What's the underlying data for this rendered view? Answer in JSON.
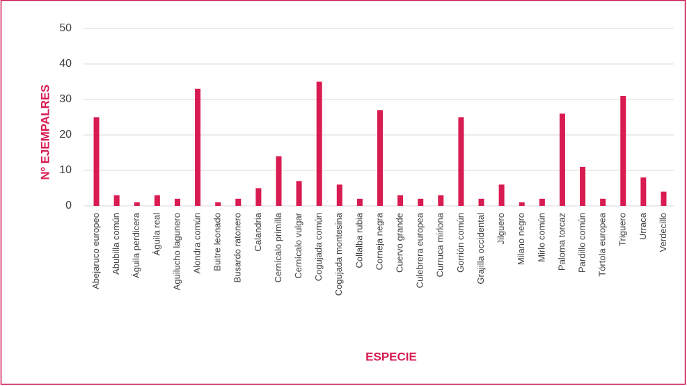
{
  "chart_data": {
    "type": "bar",
    "x_label": "ESPECIE",
    "y_label": "Nº EJEMPALRES",
    "categories": [
      "Abejaruco europeo",
      "Abubilla común",
      "Águila perdicera",
      "Águila real",
      "Aguilucho lagunero",
      "Alondra común",
      "Buitre leonado",
      "Busardo ratonero",
      "Calandria",
      "Cernícalo primilla",
      "Cernícalo vulgar",
      "Cogujada común",
      "Cogujada montesina",
      "Collalba rubia",
      "Corneja negra",
      "Cuervo grande",
      "Culebrera europea",
      "Curruca mirlona",
      "Gorrión común",
      "Grajilla occidental",
      "Jilguero",
      "Milano negro",
      "Mirlo común",
      "Paloma torcaz",
      "Pardillo común",
      "Tórtola europea",
      "Triguero",
      "Urraca",
      "Verdecillo"
    ],
    "values": [
      25,
      3,
      1,
      3,
      2,
      33,
      1,
      2,
      5,
      14,
      7,
      35,
      6,
      2,
      27,
      3,
      2,
      3,
      25,
      2,
      6,
      1,
      2,
      26,
      11,
      2,
      31,
      8,
      4
    ],
    "color": "#d81b50",
    "ylim": [
      0,
      50
    ],
    "yticks": [
      0,
      10,
      20,
      30,
      40,
      50
    ],
    "grid": true
  }
}
